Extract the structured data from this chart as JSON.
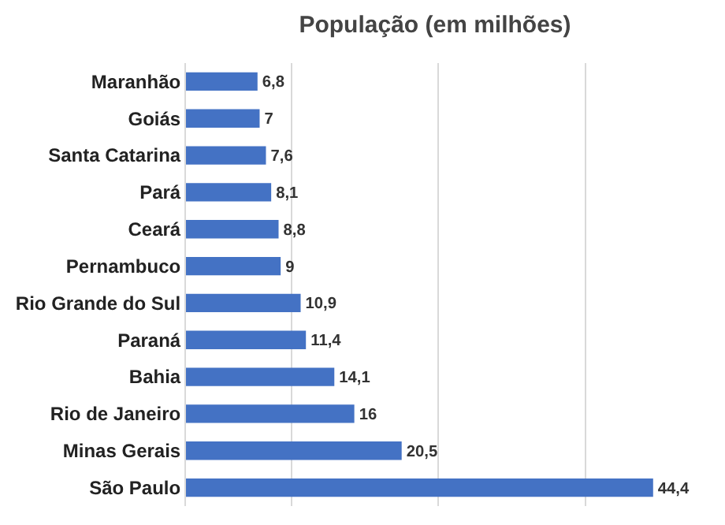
{
  "chart_data": {
    "type": "bar",
    "orientation": "horizontal",
    "title": "População (em milhões)",
    "categories": [
      "Maranhão",
      "Goiás",
      "Santa Catarina",
      "Pará",
      "Ceará",
      "Pernambuco",
      "Rio Grande do Sul",
      "Paraná",
      "Bahia",
      "Rio de Janeiro",
      "Minas Gerais",
      "São Paulo"
    ],
    "values": [
      6.8,
      7,
      7.6,
      8.1,
      8.8,
      9,
      10.9,
      11.4,
      14.1,
      16,
      20.5,
      44.4
    ],
    "value_labels": [
      "6,8",
      "7",
      "7,6",
      "8,1",
      "8,8",
      "9",
      "10,9",
      "11,4",
      "14,1",
      "16",
      "20,5",
      "44,4"
    ],
    "color": "#4472c4",
    "xticks": [
      {
        "value": 0,
        "label": null
      },
      {
        "value": 10,
        "label": null
      },
      {
        "value": 24,
        "label": null
      },
      {
        "value": 38,
        "label": null
      }
    ],
    "grid": "x",
    "tick_labels": "y"
  }
}
